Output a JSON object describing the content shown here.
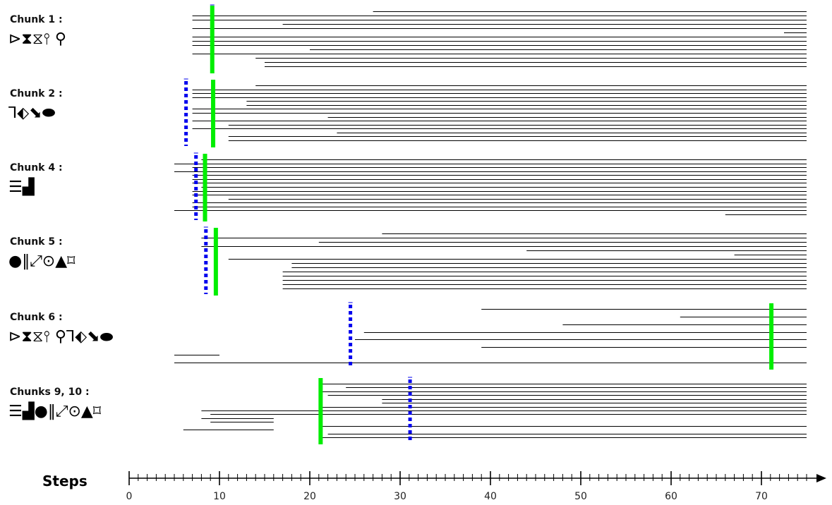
{
  "chart_data": {
    "type": "timeline",
    "xlabel": "Steps",
    "xlim": [
      0,
      75
    ],
    "x_ticks": [
      0,
      10,
      20,
      30,
      40,
      50,
      60,
      70
    ],
    "colors": {
      "trace": "#000000",
      "green_marker": "#00ee00",
      "blue_marker": "#0000ee"
    },
    "chunks": [
      {
        "label": "Chunk 1 :",
        "glyphs": "⊳⧗⧖⫯ ⚲",
        "green_step": 9.2,
        "blue_step": 9.2,
        "traces": [
          [
            27,
            75
          ],
          [
            7,
            75
          ],
          [
            7,
            75
          ],
          [
            17,
            75
          ],
          [
            7,
            75
          ],
          [
            72.5,
            75
          ],
          [
            7,
            75
          ],
          [
            7,
            75
          ],
          [
            7,
            75
          ],
          [
            20,
            75
          ],
          [
            7,
            75
          ],
          [
            14,
            75
          ],
          [
            15,
            75
          ],
          [
            15,
            75
          ]
        ]
      },
      {
        "label": "Chunk 2 :",
        "glyphs": "⅂⬖⬊⬬",
        "green_step": 9.3,
        "blue_step": 6.3,
        "traces": [
          [
            14,
            75
          ],
          [
            7,
            75
          ],
          [
            7,
            75
          ],
          [
            7,
            75
          ],
          [
            13,
            75
          ],
          [
            13,
            75
          ],
          [
            7,
            75
          ],
          [
            7,
            75
          ],
          [
            22,
            75
          ],
          [
            7,
            75
          ],
          [
            11,
            75
          ],
          [
            7,
            75
          ],
          [
            23,
            75
          ],
          [
            11,
            75
          ],
          [
            11,
            75
          ]
        ]
      },
      {
        "label": "Chunk 4 :",
        "glyphs": "☰▟",
        "green_step": 8.4,
        "blue_step": 7.4,
        "traces": [
          [
            8,
            75
          ],
          [
            5,
            75
          ],
          [
            7,
            75
          ],
          [
            5,
            75
          ],
          [
            7,
            75
          ],
          [
            7,
            75
          ],
          [
            7,
            75
          ],
          [
            8,
            75
          ],
          [
            7,
            75
          ],
          [
            7,
            75
          ],
          [
            11,
            75
          ],
          [
            7,
            75
          ],
          [
            7,
            75
          ],
          [
            5,
            75
          ],
          [
            66,
            75
          ]
        ]
      },
      {
        "label": "Chunk 5 :",
        "glyphs": "●‖⤢⊙▲⌑",
        "green_step": 9.6,
        "blue_step": 8.5,
        "traces": [
          [
            28,
            75
          ],
          [
            8,
            75
          ],
          [
            21,
            75
          ],
          [
            8,
            75
          ],
          [
            44,
            75
          ],
          [
            67,
            75
          ],
          [
            11,
            75
          ],
          [
            18,
            75
          ],
          [
            18,
            75
          ],
          [
            17,
            75
          ],
          [
            17,
            75
          ],
          [
            17,
            75
          ],
          [
            17,
            75
          ],
          [
            17,
            75
          ]
        ]
      },
      {
        "label": "Chunk 6 :",
        "glyphs": "⊳⧗⧖⫯ ⚲⅂⬖⬊⬬",
        "green_step": 71.1,
        "blue_step": 24.5,
        "traces": [
          [
            39,
            75
          ],
          [
            61,
            75
          ],
          [
            48,
            75
          ],
          [
            26,
            75
          ],
          [
            25,
            75
          ],
          [
            39,
            75
          ],
          [
            5,
            10
          ],
          [
            5,
            75
          ]
        ]
      },
      {
        "label": "Chunks 9, 10 :",
        "glyphs": "☰▟●‖⤢⊙▲⌑",
        "green_step": 21.2,
        "blue_step": 31.1,
        "traces": [
          [
            21,
            75
          ],
          [
            24,
            75
          ],
          [
            21,
            75
          ],
          [
            22,
            75
          ],
          [
            28,
            75
          ],
          [
            28,
            75
          ],
          [
            21,
            75
          ],
          [
            8,
            75
          ],
          [
            9,
            75
          ],
          [
            8,
            16
          ],
          [
            9,
            16
          ],
          [
            21,
            75
          ],
          [
            6,
            16
          ],
          [
            22,
            75
          ],
          [
            21,
            75
          ]
        ]
      }
    ]
  }
}
